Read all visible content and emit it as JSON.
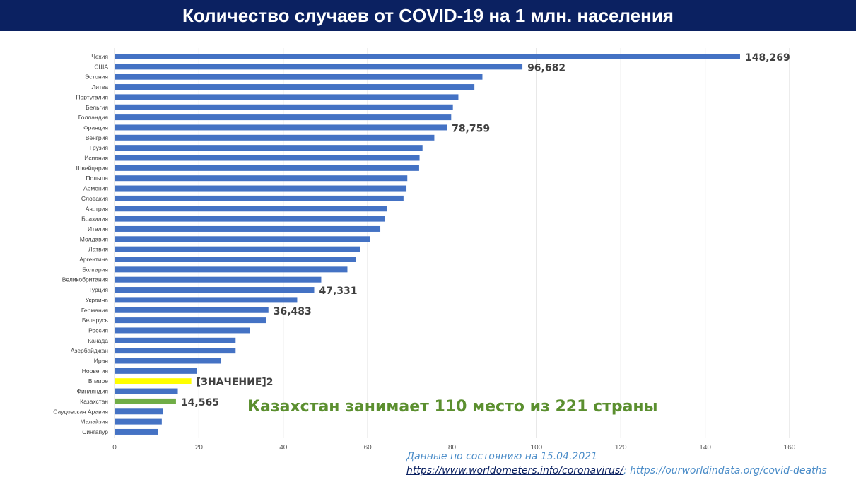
{
  "header": {
    "title": "Количество случаев от COVID-19 на 1 млн. населения"
  },
  "note": "Казахстан занимает 110 место из 221 страны",
  "source": {
    "date_line": "Данные по состоянию на 15.04.2021",
    "link1": "https://www.worldometers.info/coronavirus/",
    "separator": "; ",
    "link2": "https://ourworldindata.org/covid-deaths"
  },
  "colors": {
    "bar": "#4472c4",
    "highlight_world": "#ffff00",
    "highlight_kz": "#70ad47",
    "title_bg": "#0b2161",
    "grid": "#d9d9d9"
  },
  "chart_data": {
    "type": "bar",
    "orientation": "horizontal",
    "title": "",
    "xlabel": "",
    "ylabel": "",
    "xlim": [
      0,
      160
    ],
    "x_ticks": [
      "0",
      "20",
      "40",
      "60",
      "80",
      "100",
      "120",
      "140",
      "160"
    ],
    "grid": "vertical",
    "categories": [
      "Чехия",
      "США",
      "Эстония",
      "Литва",
      "Португалия",
      "Бельгия",
      "Голландия",
      "Франция",
      "Венгрия",
      "Грузия",
      "Испания",
      "Швейцария",
      "Польша",
      "Армения",
      "Словакия",
      "Австрия",
      "Бразилия",
      "Италия",
      "Молдавия",
      "Латвия",
      "Аргентина",
      "Болгария",
      "Великобритания",
      "Турция",
      "Украина",
      "Германия",
      "Беларусь",
      "Россия",
      "Канада",
      "Азербайджан",
      "Иран",
      "Норвегия",
      "В мире",
      "Финляндия",
      "Казахстан",
      "Саудовская Аравия",
      "Малайзия",
      "Сингапур"
    ],
    "values": [
      148.269,
      96.682,
      87.2,
      85.3,
      81.5,
      80.2,
      79.8,
      78.759,
      75.8,
      73.0,
      72.3,
      72.2,
      69.4,
      69.2,
      68.5,
      64.5,
      64.0,
      63.0,
      60.5,
      58.3,
      57.2,
      55.2,
      49.0,
      47.331,
      43.3,
      36.483,
      35.9,
      32.1,
      28.7,
      28.7,
      25.3,
      19.5,
      18.2,
      15.0,
      14.565,
      11.4,
      11.2,
      10.3
    ],
    "data_labels": [
      {
        "category": "Чехия",
        "text": "148,269"
      },
      {
        "category": "США",
        "text": "96,682"
      },
      {
        "category": "Франция",
        "text": "78,759"
      },
      {
        "category": "Турция",
        "text": "47,331"
      },
      {
        "category": "Германия",
        "text": "36,483"
      },
      {
        "category": "В мире",
        "text": "[ЗНАЧЕНИЕ]2"
      },
      {
        "category": "Казахстан",
        "text": "14,565"
      }
    ],
    "highlights": [
      {
        "category": "В мире",
        "color": "#ffff00"
      },
      {
        "category": "Казахстан",
        "color": "#70ad47"
      }
    ]
  }
}
